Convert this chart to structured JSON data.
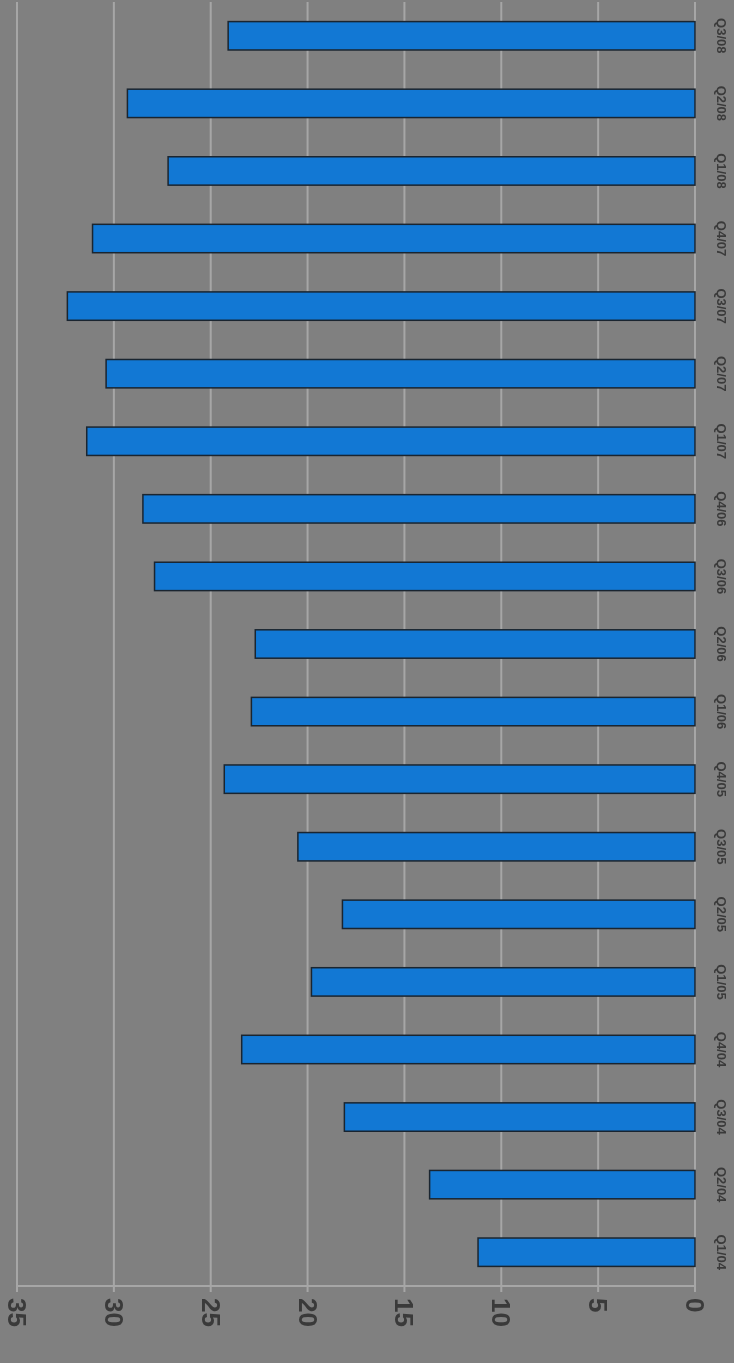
{
  "chart_data": {
    "type": "bar",
    "orientation": "horizontal",
    "categories": [
      "Q3/08",
      "Q2/08",
      "Q1/08",
      "Q4/07",
      "Q3/07",
      "Q2/07",
      "Q1/07",
      "Q4/06",
      "Q3/06",
      "Q2/06",
      "Q1/06",
      "Q4/05",
      "Q3/05",
      "Q2/05",
      "Q1/05",
      "Q4/04",
      "Q3/04",
      "Q2/04",
      "Q1/04"
    ],
    "values": [
      24.1,
      29.3,
      27.2,
      31.1,
      32.4,
      30.4,
      31.4,
      28.5,
      27.9,
      22.7,
      22.9,
      24.3,
      20.5,
      18.2,
      19.8,
      23.4,
      18.1,
      13.7,
      11.2
    ],
    "color": "#1278d4",
    "xlim": [
      35,
      0
    ],
    "xticks": [
      35,
      30,
      25,
      20,
      15,
      10,
      5,
      0
    ],
    "grid": "x"
  }
}
